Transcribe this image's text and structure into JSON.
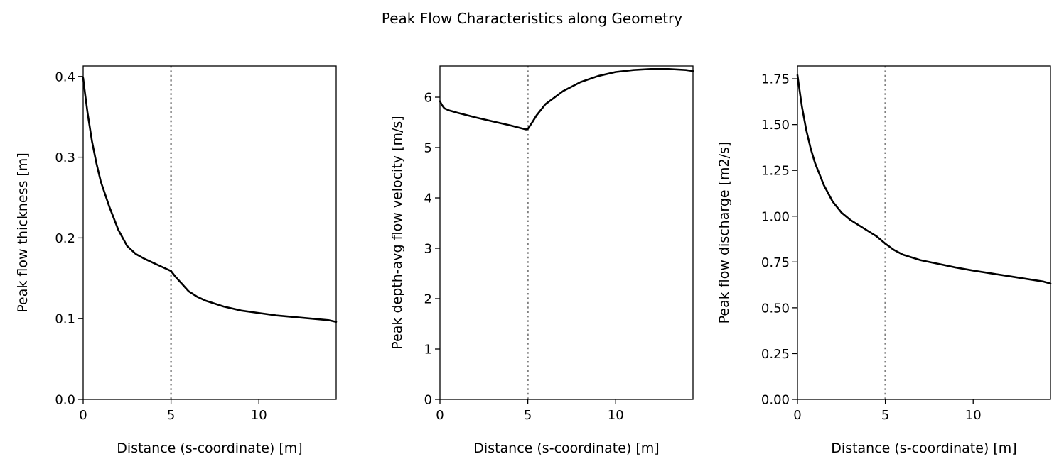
{
  "title": "Peak Flow Characteristics along Geometry",
  "colors": {
    "line": "#000000",
    "marker": "#808080",
    "background": "#ffffff"
  },
  "chart_data": [
    {
      "type": "line",
      "xlabel": "Distance (s-coordinate) [m]",
      "ylabel": "Peak flow thickness [m]",
      "xlim": [
        0,
        14.4
      ],
      "ylim": [
        0,
        0.413
      ],
      "xticks": [
        0,
        5,
        10
      ],
      "xtick_labels": [
        "0",
        "5",
        "10"
      ],
      "yticks": [
        0.0,
        0.1,
        0.2,
        0.3,
        0.4
      ],
      "ytick_labels": [
        "0.0",
        "0.1",
        "0.2",
        "0.3",
        "0.4"
      ],
      "vline_x": 5,
      "grid": false,
      "x": [
        0,
        0.1,
        0.25,
        0.5,
        0.75,
        1,
        1.5,
        2,
        2.5,
        3,
        3.5,
        4,
        4.5,
        5,
        5.25,
        5.5,
        6,
        6.5,
        7,
        8,
        9,
        10,
        11,
        12,
        13,
        14,
        14.4
      ],
      "values": [
        0.398,
        0.38,
        0.355,
        0.32,
        0.293,
        0.27,
        0.238,
        0.21,
        0.19,
        0.18,
        0.174,
        0.169,
        0.164,
        0.159,
        0.152,
        0.146,
        0.134,
        0.127,
        0.122,
        0.115,
        0.11,
        0.107,
        0.104,
        0.102,
        0.1,
        0.098,
        0.096
      ]
    },
    {
      "type": "line",
      "xlabel": "Distance (s-coordinate) [m]",
      "ylabel": "Peak depth-avg flow velocity [m/s]",
      "xlim": [
        0,
        14.4
      ],
      "ylim": [
        0,
        6.62
      ],
      "xticks": [
        0,
        5,
        10
      ],
      "xtick_labels": [
        "0",
        "5",
        "10"
      ],
      "yticks": [
        0,
        1,
        2,
        3,
        4,
        5,
        6
      ],
      "ytick_labels": [
        "0",
        "1",
        "2",
        "3",
        "4",
        "5",
        "6"
      ],
      "vline_x": 5,
      "grid": false,
      "x": [
        0,
        0.1,
        0.25,
        0.5,
        1,
        2,
        3,
        4,
        4.9,
        5,
        5.25,
        5.5,
        6,
        7,
        8,
        9,
        10,
        11,
        12,
        12.5,
        13,
        14,
        14.4
      ],
      "values": [
        5.92,
        5.85,
        5.78,
        5.74,
        5.69,
        5.6,
        5.52,
        5.44,
        5.36,
        5.37,
        5.5,
        5.64,
        5.86,
        6.12,
        6.3,
        6.42,
        6.5,
        6.54,
        6.56,
        6.56,
        6.56,
        6.54,
        6.52
      ]
    },
    {
      "type": "line",
      "xlabel": "Distance (s-coordinate) [m]",
      "ylabel": "Peak flow discharge [m2/s]",
      "xlim": [
        0,
        14.4
      ],
      "ylim": [
        0,
        1.82
      ],
      "xticks": [
        0,
        5,
        10
      ],
      "xtick_labels": [
        "0",
        "5",
        "10"
      ],
      "yticks": [
        0.0,
        0.25,
        0.5,
        0.75,
        1.0,
        1.25,
        1.5,
        1.75
      ],
      "ytick_labels": [
        "0.00",
        "0.25",
        "0.50",
        "0.75",
        "1.00",
        "1.25",
        "1.50",
        "1.75"
      ],
      "vline_x": 5,
      "grid": false,
      "x": [
        0,
        0.1,
        0.25,
        0.5,
        0.75,
        1,
        1.5,
        2,
        2.5,
        3,
        3.5,
        4,
        4.5,
        5,
        5.5,
        6,
        7,
        8,
        9,
        10,
        11,
        12,
        13,
        14,
        14.4
      ],
      "values": [
        1.77,
        1.7,
        1.6,
        1.47,
        1.37,
        1.29,
        1.17,
        1.08,
        1.02,
        0.98,
        0.95,
        0.92,
        0.89,
        0.85,
        0.815,
        0.79,
        0.76,
        0.74,
        0.72,
        0.703,
        0.688,
        0.673,
        0.658,
        0.643,
        0.632
      ]
    }
  ]
}
